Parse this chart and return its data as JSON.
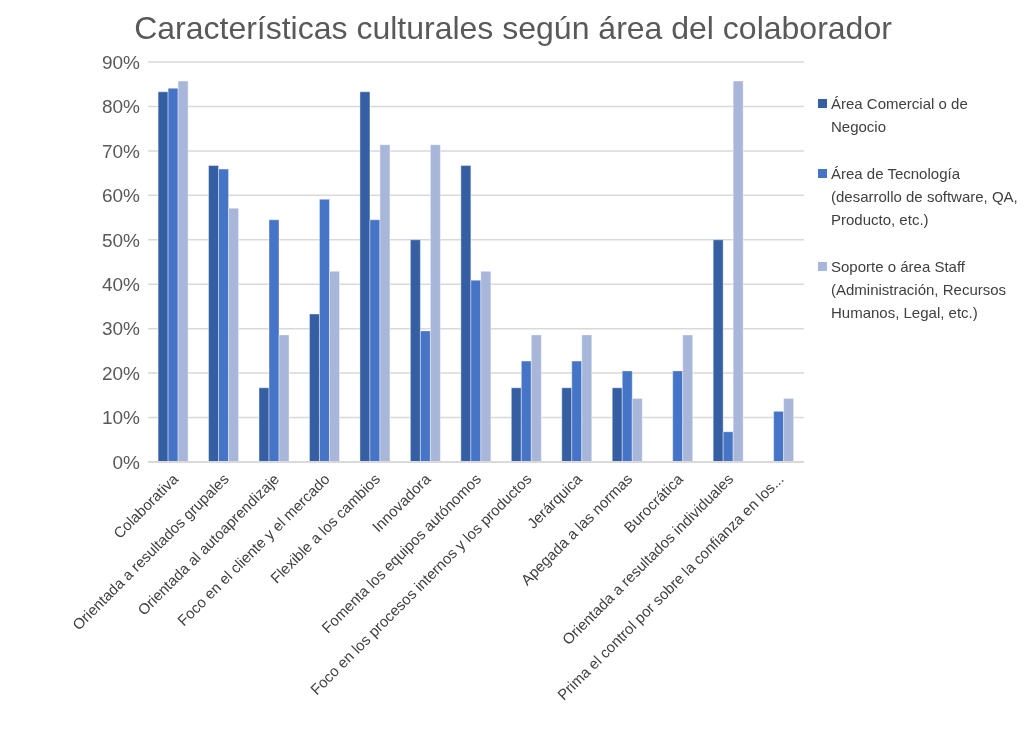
{
  "chart_data": {
    "type": "bar",
    "title": "Características culturales según área del colaborador",
    "categories": [
      "Colaborativa",
      "Orientada a resultados grupales",
      "Orientada al autoaprendizaje",
      "Foco en el cliente y el mercado",
      "Flexible a los cambios",
      "Innovadora",
      "Fomenta los equipos autónomos",
      "Foco en los procesos internos y los productos",
      "Jerárquica",
      "Apegada a las normas",
      "Burocrática",
      "Orientada a resultados individuales",
      "Prima el control por sobre la confianza en los..."
    ],
    "series": [
      {
        "name": "Área Comercial o de Negocio",
        "color": "#365fa3",
        "values": [
          83.3,
          66.7,
          16.7,
          33.3,
          83.3,
          50,
          66.7,
          16.7,
          16.7,
          16.7,
          0,
          50,
          0
        ]
      },
      {
        "name": "Área de Tecnología (desarrollo de software, QA, Producto, etc.)",
        "color": "#4674c6",
        "values": [
          84.1,
          65.9,
          54.5,
          59.1,
          54.5,
          29.5,
          40.9,
          22.7,
          22.7,
          20.5,
          20.5,
          6.8,
          11.4
        ]
      },
      {
        "name": "Soporte o área Staff (Administración, Recursos Humanos, Legal, etc.)",
        "color": "#a8b6da",
        "values": [
          85.7,
          57.1,
          28.6,
          42.9,
          71.4,
          71.4,
          42.9,
          28.6,
          28.6,
          14.3,
          28.6,
          85.7,
          14.3
        ]
      }
    ],
    "ylim": [
      0,
      90
    ],
    "yticks": [
      {
        "value": 0,
        "label": "0%"
      },
      {
        "value": 10,
        "label": "10%"
      },
      {
        "value": 20,
        "label": "20%"
      },
      {
        "value": 30,
        "label": "30%"
      },
      {
        "value": 40,
        "label": "40%"
      },
      {
        "value": 50,
        "label": "50%"
      },
      {
        "value": 60,
        "label": "60%"
      },
      {
        "value": 70,
        "label": "70%"
      },
      {
        "value": 80,
        "label": "80%"
      },
      {
        "value": 90,
        "label": "90%"
      }
    ],
    "grid": "y",
    "legend": "right"
  }
}
